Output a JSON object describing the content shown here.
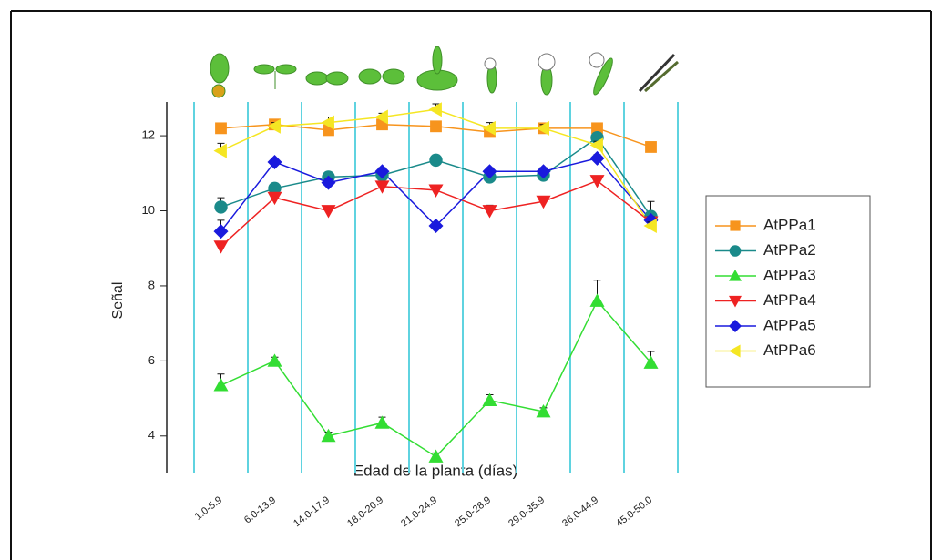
{
  "chart_data": {
    "type": "line",
    "x_label": "Edad de la planta (días)",
    "y_label": "Señal",
    "categories": [
      "1.0-5.9",
      "6.0-13.9",
      "14.0-17.9",
      "18.0-20.9",
      "21.0-24.9",
      "25.0-28.9",
      "29.0-35.9",
      "36.0-44.9",
      "45.0-50.0"
    ],
    "ylim": [
      3,
      12.9
    ],
    "yticks": [
      4,
      6,
      8,
      10,
      12
    ],
    "separator_color": "#5fd3e0",
    "legend": "right",
    "series": [
      {
        "name": "AtPPa1",
        "color": "#f7941d",
        "marker": "square",
        "values": [
          12.2,
          12.3,
          12.15,
          12.3,
          12.25,
          12.1,
          12.2,
          12.2,
          11.7
        ],
        "errors": [
          0.05,
          0.1,
          0.05,
          0.05,
          0.05,
          0.05,
          0.05,
          0.05,
          0.05
        ]
      },
      {
        "name": "AtPPa2",
        "color": "#1a8a8a",
        "marker": "circle",
        "values": [
          10.1,
          10.6,
          10.9,
          10.95,
          11.35,
          10.9,
          10.95,
          11.95,
          9.85
        ],
        "errors": [
          0.25,
          0.1,
          0.1,
          0.1,
          0.05,
          0.05,
          0.1,
          0.1,
          0.4
        ]
      },
      {
        "name": "AtPPa3",
        "color": "#33dd33",
        "marker": "triangle-up",
        "values": [
          5.35,
          6.0,
          4.0,
          4.35,
          3.45,
          4.95,
          4.65,
          7.6,
          5.95
        ],
        "errors": [
          0.3,
          0.1,
          0.1,
          0.15,
          0.1,
          0.15,
          0.1,
          0.55,
          0.3
        ]
      },
      {
        "name": "AtPPa4",
        "color": "#ee2222",
        "marker": "triangle-down",
        "values": [
          9.05,
          10.35,
          10.0,
          10.65,
          10.55,
          10.0,
          10.25,
          10.8,
          9.7
        ],
        "errors": [
          0.1,
          0.1,
          0.1,
          0.1,
          0.1,
          0.15,
          0.1,
          0.1,
          0.1
        ]
      },
      {
        "name": "AtPPa5",
        "color": "#1a1add",
        "marker": "diamond",
        "values": [
          9.45,
          11.3,
          10.75,
          11.05,
          9.6,
          11.05,
          11.05,
          11.4,
          9.75
        ],
        "errors": [
          0.3,
          0.1,
          0.1,
          0.1,
          0.1,
          0.1,
          0.1,
          0.1,
          0.1
        ]
      },
      {
        "name": "AtPPa6",
        "color": "#f5e623",
        "marker": "triangle-left",
        "values": [
          11.6,
          12.25,
          12.35,
          12.5,
          12.7,
          12.2,
          12.2,
          11.75,
          9.6
        ],
        "errors": [
          0.2,
          0.1,
          0.15,
          0.1,
          0.15,
          0.15,
          0.1,
          0.1,
          0.1
        ]
      }
    ]
  }
}
